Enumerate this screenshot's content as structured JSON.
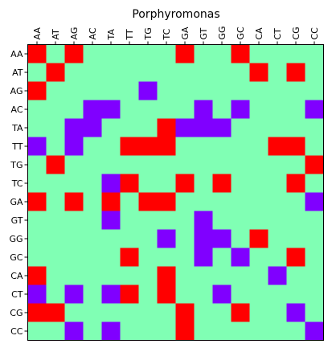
{
  "chart_data": {
    "type": "heatmap",
    "title": "Porphyromonas",
    "x_labels": [
      "AA",
      "AT",
      "AG",
      "AC",
      "TA",
      "TT",
      "TG",
      "TC",
      "GA",
      "GT",
      "GG",
      "GC",
      "CA",
      "CT",
      "CG",
      "CC"
    ],
    "y_labels": [
      "AA",
      "AT",
      "AG",
      "AC",
      "TA",
      "TT",
      "TG",
      "TC",
      "GA",
      "GT",
      "GG",
      "GC",
      "CA",
      "CT",
      "CG",
      "CC"
    ],
    "x_tick_position": "top",
    "grid": false,
    "legend": "none",
    "value_levels": {
      "0": "background",
      "1": "red",
      "2": "purple"
    },
    "colors": {
      "background": "#80ffb4",
      "red": "#ff0000",
      "purple": "#8000ff",
      "frame": "#000000"
    },
    "matrix": [
      [
        1,
        0,
        1,
        0,
        0,
        0,
        0,
        0,
        1,
        0,
        0,
        1,
        0,
        0,
        0,
        0
      ],
      [
        0,
        1,
        0,
        0,
        0,
        0,
        0,
        0,
        0,
        0,
        0,
        0,
        1,
        0,
        1,
        0
      ],
      [
        1,
        0,
        0,
        0,
        0,
        0,
        2,
        0,
        0,
        0,
        0,
        0,
        0,
        0,
        0,
        0
      ],
      [
        0,
        0,
        0,
        2,
        2,
        0,
        0,
        0,
        0,
        2,
        0,
        2,
        0,
        0,
        0,
        2
      ],
      [
        0,
        0,
        2,
        2,
        0,
        0,
        0,
        1,
        2,
        2,
        2,
        0,
        0,
        0,
        0,
        0
      ],
      [
        2,
        0,
        2,
        0,
        0,
        1,
        1,
        1,
        0,
        0,
        0,
        0,
        0,
        1,
        1,
        0
      ],
      [
        0,
        1,
        0,
        0,
        0,
        0,
        0,
        0,
        0,
        0,
        0,
        0,
        0,
        0,
        0,
        1
      ],
      [
        0,
        0,
        0,
        0,
        2,
        1,
        0,
        0,
        1,
        0,
        1,
        0,
        0,
        0,
        1,
        0
      ],
      [
        1,
        0,
        1,
        0,
        1,
        0,
        1,
        1,
        0,
        0,
        0,
        0,
        0,
        0,
        0,
        2
      ],
      [
        0,
        0,
        0,
        0,
        2,
        0,
        0,
        0,
        0,
        2,
        0,
        0,
        0,
        0,
        0,
        0
      ],
      [
        0,
        0,
        0,
        0,
        0,
        0,
        0,
        2,
        0,
        2,
        2,
        0,
        1,
        0,
        0,
        0
      ],
      [
        0,
        0,
        0,
        0,
        0,
        1,
        0,
        0,
        0,
        2,
        0,
        2,
        0,
        0,
        1,
        0
      ],
      [
        1,
        0,
        0,
        0,
        0,
        0,
        0,
        1,
        0,
        0,
        0,
        0,
        0,
        2,
        0,
        0
      ],
      [
        2,
        0,
        2,
        0,
        2,
        1,
        0,
        1,
        0,
        0,
        2,
        0,
        0,
        0,
        0,
        0
      ],
      [
        1,
        1,
        0,
        0,
        0,
        0,
        0,
        0,
        1,
        0,
        0,
        1,
        0,
        0,
        2,
        0
      ],
      [
        0,
        0,
        2,
        0,
        2,
        0,
        0,
        0,
        1,
        0,
        0,
        0,
        0,
        0,
        0,
        2
      ]
    ]
  }
}
